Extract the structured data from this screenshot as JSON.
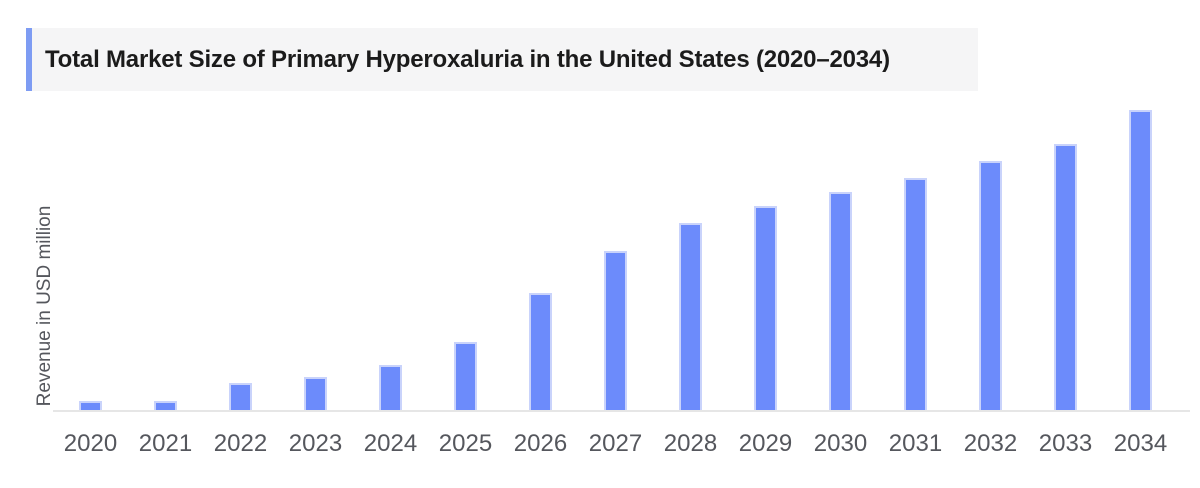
{
  "header": {
    "title": "Total Market Size of Primary Hyperoxaluria in the United States (2020–2034)"
  },
  "chart_data": {
    "type": "bar",
    "title": "Total Market Size of Primary Hyperoxaluria in the United States (2020–2034)",
    "xlabel": "",
    "ylabel": "Revenue in USD million",
    "categories": [
      "2020",
      "2021",
      "2022",
      "2023",
      "2024",
      "2025",
      "2026",
      "2027",
      "2028",
      "2029",
      "2030",
      "2031",
      "2032",
      "2033",
      "2034"
    ],
    "values": [
      3.5,
      3.5,
      9.2,
      11.3,
      15.4,
      22.9,
      39.2,
      53.2,
      62.5,
      68.1,
      72.8,
      77.4,
      83.1,
      88.7,
      100
    ],
    "value_note": "y-axis shows no numeric tick labels; values are relative bar heights indexed to 2034 = 100",
    "ylim": [
      0,
      100
    ],
    "grid": false,
    "legend": false,
    "colors": {
      "bar_fill": "#6C8BFB",
      "bar_stroke": "#C9D3FB",
      "title_accent": "#7E9CF3",
      "title_background": "#F5F5F6",
      "title_text": "#1B1B1B",
      "axis_line": "#E6E6E6",
      "tick_label": "#55575D",
      "axis_title": "#55575D"
    }
  }
}
